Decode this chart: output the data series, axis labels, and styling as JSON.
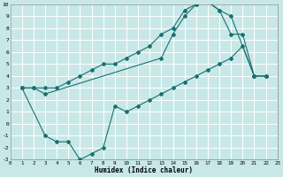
{
  "xlabel": "Humidex (Indice chaleur)",
  "bg_color": "#c8e8e8",
  "grid_color": "#ffffff",
  "line_color": "#1a7070",
  "xlim": [
    0,
    23
  ],
  "ylim": [
    -3,
    10
  ],
  "xticks": [
    0,
    1,
    2,
    3,
    4,
    5,
    6,
    7,
    8,
    9,
    10,
    11,
    12,
    13,
    14,
    15,
    16,
    17,
    18,
    19,
    20,
    21,
    22,
    23
  ],
  "yticks": [
    -3,
    -2,
    -1,
    0,
    1,
    2,
    3,
    4,
    5,
    6,
    7,
    8,
    9,
    10
  ],
  "line1_x": [
    1,
    2,
    3,
    13,
    14,
    15,
    16,
    17,
    18,
    19,
    21,
    22
  ],
  "line1_y": [
    3.0,
    3.0,
    2.5,
    5.5,
    7.5,
    9.0,
    10.0,
    10.2,
    9.5,
    9.0,
    4.0,
    4.0
  ],
  "line2_x": [
    1,
    2,
    3,
    4,
    5,
    6,
    7,
    8,
    9,
    10,
    11,
    12,
    13,
    14,
    15,
    16,
    17,
    18,
    19,
    20,
    21,
    22
  ],
  "line2_y": [
    3.0,
    3.0,
    3.0,
    3.0,
    3.5,
    4.0,
    4.5,
    5.0,
    5.0,
    5.5,
    6.0,
    6.5,
    7.5,
    8.0,
    9.5,
    10.0,
    10.2,
    9.5,
    7.5,
    7.5,
    4.0,
    4.0
  ],
  "line3_x": [
    1,
    3,
    4,
    5,
    6,
    7,
    8,
    9,
    10,
    11,
    12,
    13,
    14,
    15,
    16,
    17,
    18,
    19,
    20,
    21,
    22
  ],
  "line3_y": [
    3.0,
    -1.0,
    -1.5,
    -1.5,
    -3.0,
    -2.5,
    -2.0,
    1.5,
    1.0,
    1.5,
    2.0,
    2.5,
    3.0,
    3.5,
    4.0,
    4.5,
    5.0,
    5.5,
    6.5,
    4.0,
    4.0
  ]
}
